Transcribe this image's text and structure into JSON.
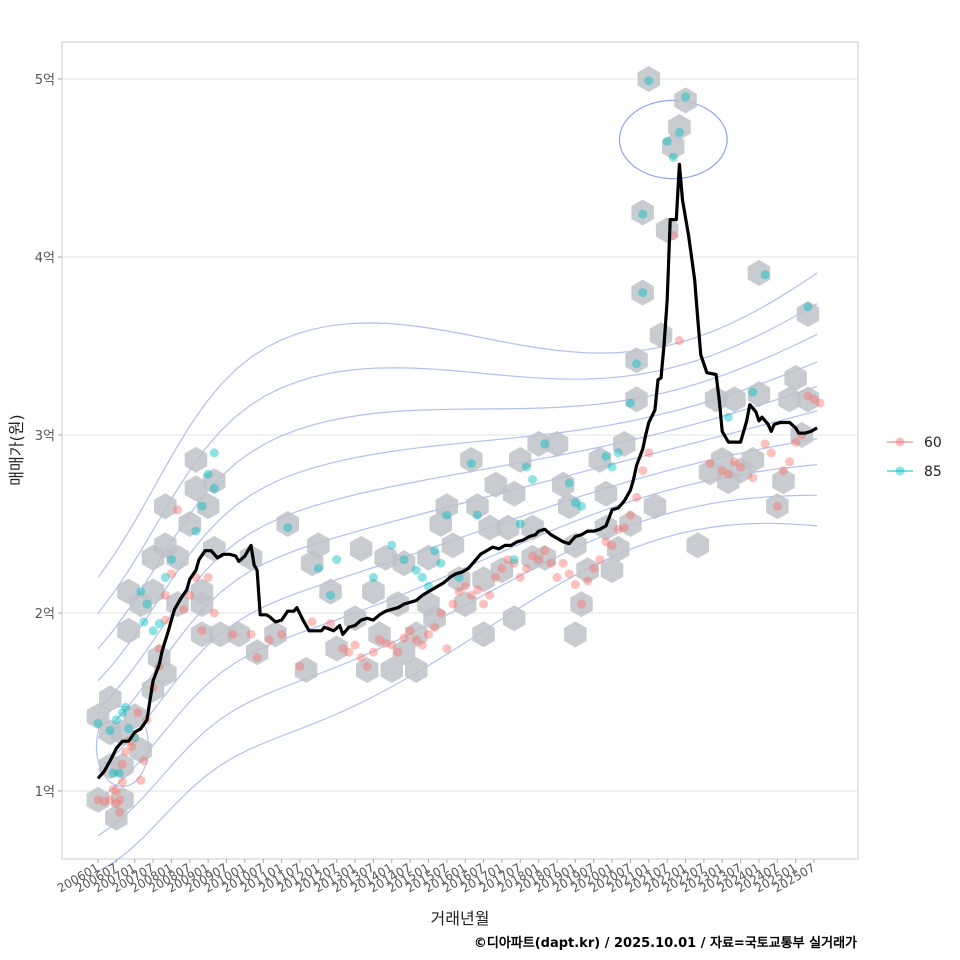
{
  "chart_data": {
    "type": "line",
    "title": "",
    "xlabel": "거래년월",
    "ylabel": "매매가(원)",
    "caption": "©디아파트(dapt.kr) / 2025.10.01 / 자료=국토교통부 실거래가",
    "x_start": "2006-01",
    "x_unit": "month index from 2006-01",
    "xlim_months": [
      -5,
      240
    ],
    "ylim": [
      0.62,
      5.2
    ],
    "y_unit": "억",
    "y_ticks": [
      {
        "value": 1,
        "label": "1억"
      },
      {
        "value": 2,
        "label": "2억"
      },
      {
        "value": 3,
        "label": "3억"
      },
      {
        "value": 4,
        "label": "4억"
      },
      {
        "value": 5,
        "label": "5억"
      }
    ],
    "x_ticks": [
      "200601",
      "200607",
      "200701",
      "200707",
      "200801",
      "200807",
      "200901",
      "200907",
      "201001",
      "201007",
      "201101",
      "201107",
      "201201",
      "201207",
      "201301",
      "201307",
      "201401",
      "201407",
      "201501",
      "201507",
      "201601",
      "201607",
      "201701",
      "201707",
      "201801",
      "201807",
      "201901",
      "201907",
      "202001",
      "202007",
      "202101",
      "202107",
      "202201",
      "202207",
      "202301",
      "202307",
      "202401",
      "202407",
      "202501",
      "202507"
    ],
    "grid": true,
    "legend": {
      "position": "right",
      "title": "",
      "entries": [
        {
          "label": "60",
          "color": "#F8766D"
        },
        {
          "label": "85",
          "color": "#00BFC4"
        }
      ]
    },
    "colors": {
      "line": "#000000",
      "hex": "#BEC2C8",
      "contour": "#8FA6E8",
      "grid": "#E3E3E3",
      "border": "#CCCCCC"
    },
    "moving_average": [
      [
        0,
        1.07
      ],
      [
        2,
        1.11
      ],
      [
        4,
        1.17
      ],
      [
        6,
        1.24
      ],
      [
        8,
        1.28
      ],
      [
        10,
        1.28
      ],
      [
        12,
        1.33
      ],
      [
        14,
        1.35
      ],
      [
        16,
        1.4
      ],
      [
        17,
        1.51
      ],
      [
        18,
        1.62
      ],
      [
        20,
        1.71
      ],
      [
        21,
        1.79
      ],
      [
        23,
        1.9
      ],
      [
        24,
        1.96
      ],
      [
        25,
        2.02
      ],
      [
        27,
        2.08
      ],
      [
        29,
        2.13
      ],
      [
        30,
        2.19
      ],
      [
        32,
        2.24
      ],
      [
        33,
        2.3
      ],
      [
        35,
        2.35
      ],
      [
        37,
        2.35
      ],
      [
        39,
        2.31
      ],
      [
        41,
        2.33
      ],
      [
        43,
        2.33
      ],
      [
        45,
        2.32
      ],
      [
        46,
        2.29
      ],
      [
        48,
        2.32
      ],
      [
        50,
        2.38
      ],
      [
        51,
        2.27
      ],
      [
        52,
        2.24
      ],
      [
        53,
        1.99
      ],
      [
        55,
        1.99
      ],
      [
        56,
        1.98
      ],
      [
        58,
        1.95
      ],
      [
        60,
        1.96
      ],
      [
        62,
        2.01
      ],
      [
        64,
        2.01
      ],
      [
        65,
        2.03
      ],
      [
        67,
        1.96
      ],
      [
        69,
        1.9
      ],
      [
        71,
        1.9
      ],
      [
        73,
        1.9
      ],
      [
        74,
        1.92
      ],
      [
        77,
        1.9
      ],
      [
        79,
        1.93
      ],
      [
        80,
        1.88
      ],
      [
        82,
        1.92
      ],
      [
        84,
        1.93
      ],
      [
        86,
        1.96
      ],
      [
        88,
        1.97
      ],
      [
        90,
        1.96
      ],
      [
        92,
        1.99
      ],
      [
        94,
        2.01
      ],
      [
        96,
        2.02
      ],
      [
        98,
        2.03
      ],
      [
        100,
        2.05
      ],
      [
        102,
        2.06
      ],
      [
        104,
        2.07
      ],
      [
        106,
        2.1
      ],
      [
        108,
        2.12
      ],
      [
        109,
        2.13
      ],
      [
        111,
        2.15
      ],
      [
        113,
        2.17
      ],
      [
        115,
        2.2
      ],
      [
        117,
        2.22
      ],
      [
        119,
        2.23
      ],
      [
        121,
        2.25
      ],
      [
        123,
        2.29
      ],
      [
        125,
        2.33
      ],
      [
        127,
        2.35
      ],
      [
        129,
        2.37
      ],
      [
        131,
        2.36
      ],
      [
        133,
        2.38
      ],
      [
        135,
        2.38
      ],
      [
        137,
        2.4
      ],
      [
        139,
        2.41
      ],
      [
        141,
        2.43
      ],
      [
        143,
        2.44
      ],
      [
        144,
        2.46
      ],
      [
        146,
        2.47
      ],
      [
        148,
        2.44
      ],
      [
        150,
        2.42
      ],
      [
        152,
        2.4
      ],
      [
        154,
        2.39
      ],
      [
        156,
        2.43
      ],
      [
        158,
        2.44
      ],
      [
        160,
        2.46
      ],
      [
        162,
        2.46
      ],
      [
        164,
        2.47
      ],
      [
        166,
        2.49
      ],
      [
        168,
        2.58
      ],
      [
        170,
        2.59
      ],
      [
        172,
        2.63
      ],
      [
        174,
        2.69
      ],
      [
        175,
        2.75
      ],
      [
        176,
        2.83
      ],
      [
        178,
        2.92
      ],
      [
        179,
        3.0
      ],
      [
        180,
        3.07
      ],
      [
        182,
        3.14
      ],
      [
        183,
        3.31
      ],
      [
        184,
        3.32
      ],
      [
        185,
        3.51
      ],
      [
        186,
        3.76
      ],
      [
        187,
        4.21
      ],
      [
        189,
        4.21
      ],
      [
        190,
        4.52
      ],
      [
        191,
        4.32
      ],
      [
        193,
        4.12
      ],
      [
        195,
        3.87
      ],
      [
        196,
        3.65
      ],
      [
        197,
        3.45
      ],
      [
        199,
        3.35
      ],
      [
        202,
        3.34
      ],
      [
        203,
        3.2
      ],
      [
        204,
        3.02
      ],
      [
        206,
        2.96
      ],
      [
        210,
        2.96
      ],
      [
        212,
        3.08
      ],
      [
        213,
        3.17
      ],
      [
        215,
        3.13
      ],
      [
        216,
        3.08
      ],
      [
        217,
        3.1
      ],
      [
        219,
        3.06
      ],
      [
        220,
        3.02
      ],
      [
        221,
        3.06
      ],
      [
        223,
        3.07
      ],
      [
        226,
        3.07
      ],
      [
        228,
        3.04
      ],
      [
        229,
        3.01
      ],
      [
        231,
        3.01
      ],
      [
        233,
        3.02
      ],
      [
        235,
        3.04
      ]
    ],
    "hexbins": [
      [
        0,
        1.42
      ],
      [
        0,
        0.95
      ],
      [
        4,
        1.52
      ],
      [
        4,
        1.33
      ],
      [
        4,
        1.14
      ],
      [
        6,
        0.85
      ],
      [
        8,
        1.33
      ],
      [
        8,
        1.14
      ],
      [
        8,
        0.95
      ],
      [
        10,
        2.12
      ],
      [
        10,
        1.9
      ],
      [
        12,
        1.42
      ],
      [
        14,
        2.05
      ],
      [
        14,
        1.23
      ],
      [
        18,
        2.31
      ],
      [
        18,
        2.12
      ],
      [
        18,
        1.57
      ],
      [
        20,
        1.75
      ],
      [
        22,
        2.38
      ],
      [
        22,
        2.6
      ],
      [
        22,
        1.66
      ],
      [
        26,
        2.05
      ],
      [
        26,
        2.31
      ],
      [
        30,
        2.5
      ],
      [
        32,
        2.7
      ],
      [
        32,
        2.86
      ],
      [
        34,
        2.05
      ],
      [
        34,
        2.12
      ],
      [
        34,
        1.88
      ],
      [
        36,
        2.6
      ],
      [
        38,
        2.74
      ],
      [
        38,
        2.36
      ],
      [
        40,
        1.88
      ],
      [
        46,
        1.88
      ],
      [
        50,
        2.31
      ],
      [
        52,
        1.78
      ],
      [
        58,
        1.88
      ],
      [
        62,
        2.5
      ],
      [
        68,
        1.68
      ],
      [
        70,
        2.28
      ],
      [
        72,
        2.38
      ],
      [
        76,
        2.12
      ],
      [
        78,
        1.8
      ],
      [
        84,
        1.97
      ],
      [
        86,
        2.36
      ],
      [
        88,
        1.68
      ],
      [
        90,
        2.12
      ],
      [
        92,
        1.88
      ],
      [
        94,
        2.31
      ],
      [
        96,
        1.68
      ],
      [
        98,
        2.05
      ],
      [
        100,
        2.28
      ],
      [
        100,
        1.78
      ],
      [
        104,
        1.68
      ],
      [
        104,
        1.88
      ],
      [
        108,
        2.31
      ],
      [
        108,
        2.05
      ],
      [
        110,
        1.97
      ],
      [
        112,
        2.5
      ],
      [
        114,
        2.6
      ],
      [
        116,
        2.38
      ],
      [
        118,
        2.19
      ],
      [
        120,
        2.05
      ],
      [
        122,
        2.86
      ],
      [
        124,
        2.6
      ],
      [
        126,
        2.19
      ],
      [
        126,
        1.88
      ],
      [
        128,
        2.48
      ],
      [
        130,
        2.72
      ],
      [
        132,
        2.24
      ],
      [
        134,
        2.48
      ],
      [
        136,
        2.67
      ],
      [
        136,
        1.97
      ],
      [
        138,
        2.86
      ],
      [
        142,
        2.48
      ],
      [
        142,
        2.31
      ],
      [
        144,
        2.95
      ],
      [
        146,
        2.31
      ],
      [
        150,
        2.95
      ],
      [
        152,
        2.72
      ],
      [
        154,
        2.6
      ],
      [
        156,
        2.38
      ],
      [
        156,
        1.88
      ],
      [
        158,
        2.05
      ],
      [
        160,
        2.24
      ],
      [
        164,
        2.86
      ],
      [
        166,
        2.67
      ],
      [
        166,
        2.48
      ],
      [
        168,
        2.24
      ],
      [
        170,
        2.36
      ],
      [
        172,
        2.95
      ],
      [
        174,
        2.5
      ],
      [
        176,
        3.2
      ],
      [
        176,
        3.42
      ],
      [
        178,
        3.8
      ],
      [
        178,
        4.25
      ],
      [
        180,
        5.0
      ],
      [
        182,
        2.6
      ],
      [
        184,
        3.56
      ],
      [
        186,
        4.15
      ],
      [
        188,
        4.62
      ],
      [
        190,
        4.73
      ],
      [
        192,
        4.88
      ],
      [
        196,
        2.38
      ],
      [
        200,
        2.79
      ],
      [
        202,
        3.2
      ],
      [
        204,
        2.86
      ],
      [
        206,
        2.74
      ],
      [
        208,
        3.2
      ],
      [
        210,
        2.8
      ],
      [
        214,
        2.86
      ],
      [
        216,
        3.91
      ],
      [
        216,
        3.23
      ],
      [
        222,
        2.6
      ],
      [
        224,
        2.74
      ],
      [
        226,
        3.2
      ],
      [
        228,
        3.32
      ],
      [
        230,
        3.0
      ],
      [
        232,
        3.2
      ],
      [
        232,
        3.68
      ]
    ],
    "points_60": [
      [
        0,
        0.95
      ],
      [
        2,
        0.94
      ],
      [
        4,
        0.95
      ],
      [
        5,
        1.01
      ],
      [
        6,
        0.93
      ],
      [
        6,
        1.0
      ],
      [
        7,
        0.88
      ],
      [
        7,
        0.95
      ],
      [
        8,
        1.05
      ],
      [
        8,
        1.15
      ],
      [
        9,
        1.22
      ],
      [
        10,
        1.28
      ],
      [
        11,
        1.25
      ],
      [
        12,
        1.3
      ],
      [
        13,
        1.44
      ],
      [
        14,
        1.06
      ],
      [
        15,
        1.17
      ],
      [
        16,
        1.4
      ],
      [
        18,
        1.58
      ],
      [
        20,
        1.7
      ],
      [
        20,
        1.8
      ],
      [
        22,
        1.96
      ],
      [
        22,
        2.1
      ],
      [
        24,
        2.22
      ],
      [
        26,
        2.58
      ],
      [
        28,
        2.02
      ],
      [
        30,
        2.1
      ],
      [
        32,
        2.2
      ],
      [
        34,
        1.9
      ],
      [
        36,
        2.2
      ],
      [
        38,
        2.0
      ],
      [
        44,
        1.88
      ],
      [
        50,
        1.88
      ],
      [
        52,
        1.75
      ],
      [
        56,
        1.85
      ],
      [
        60,
        1.88
      ],
      [
        66,
        1.7
      ],
      [
        70,
        1.95
      ],
      [
        76,
        1.94
      ],
      [
        80,
        1.8
      ],
      [
        82,
        1.78
      ],
      [
        84,
        1.82
      ],
      [
        86,
        1.75
      ],
      [
        88,
        1.7
      ],
      [
        90,
        1.78
      ],
      [
        92,
        1.85
      ],
      [
        94,
        1.83
      ],
      [
        96,
        1.82
      ],
      [
        98,
        1.78
      ],
      [
        100,
        1.86
      ],
      [
        102,
        1.9
      ],
      [
        104,
        1.85
      ],
      [
        106,
        1.82
      ],
      [
        108,
        1.88
      ],
      [
        110,
        1.92
      ],
      [
        112,
        2.0
      ],
      [
        114,
        1.8
      ],
      [
        116,
        2.05
      ],
      [
        118,
        2.12
      ],
      [
        120,
        2.15
      ],
      [
        122,
        2.1
      ],
      [
        124,
        2.13
      ],
      [
        126,
        2.05
      ],
      [
        128,
        2.1
      ],
      [
        130,
        2.2
      ],
      [
        132,
        2.25
      ],
      [
        134,
        2.3
      ],
      [
        136,
        2.28
      ],
      [
        138,
        2.2
      ],
      [
        140,
        2.25
      ],
      [
        142,
        2.32
      ],
      [
        144,
        2.3
      ],
      [
        146,
        2.35
      ],
      [
        148,
        2.28
      ],
      [
        150,
        2.2
      ],
      [
        152,
        2.28
      ],
      [
        154,
        2.22
      ],
      [
        156,
        2.16
      ],
      [
        158,
        2.05
      ],
      [
        160,
        2.18
      ],
      [
        162,
        2.25
      ],
      [
        164,
        2.3
      ],
      [
        166,
        2.4
      ],
      [
        168,
        2.38
      ],
      [
        170,
        2.47
      ],
      [
        172,
        2.48
      ],
      [
        174,
        2.55
      ],
      [
        176,
        2.65
      ],
      [
        178,
        2.8
      ],
      [
        180,
        2.9
      ],
      [
        188,
        4.12
      ],
      [
        190,
        3.53
      ],
      [
        200,
        2.84
      ],
      [
        204,
        2.8
      ],
      [
        206,
        2.78
      ],
      [
        208,
        2.85
      ],
      [
        210,
        2.82
      ],
      [
        214,
        2.76
      ],
      [
        218,
        2.95
      ],
      [
        220,
        2.9
      ],
      [
        222,
        2.6
      ],
      [
        224,
        2.8
      ],
      [
        226,
        2.85
      ],
      [
        228,
        2.96
      ],
      [
        230,
        3.0
      ],
      [
        232,
        3.22
      ],
      [
        234,
        3.2
      ],
      [
        236,
        3.18
      ]
    ],
    "points_85": [
      [
        0,
        1.38
      ],
      [
        4,
        1.34
      ],
      [
        5,
        1.1
      ],
      [
        6,
        1.4
      ],
      [
        7,
        1.1
      ],
      [
        8,
        1.44
      ],
      [
        9,
        1.47
      ],
      [
        10,
        1.35
      ],
      [
        12,
        1.3
      ],
      [
        14,
        2.12
      ],
      [
        15,
        1.95
      ],
      [
        16,
        2.05
      ],
      [
        18,
        1.9
      ],
      [
        20,
        1.94
      ],
      [
        22,
        2.2
      ],
      [
        24,
        2.3
      ],
      [
        32,
        2.46
      ],
      [
        34,
        2.6
      ],
      [
        36,
        2.78
      ],
      [
        38,
        2.7
      ],
      [
        38,
        2.9
      ],
      [
        62,
        2.48
      ],
      [
        72,
        2.25
      ],
      [
        76,
        2.1
      ],
      [
        78,
        2.3
      ],
      [
        90,
        2.2
      ],
      [
        96,
        2.38
      ],
      [
        100,
        2.3
      ],
      [
        104,
        2.24
      ],
      [
        106,
        2.2
      ],
      [
        108,
        2.15
      ],
      [
        110,
        2.35
      ],
      [
        112,
        2.28
      ],
      [
        114,
        2.55
      ],
      [
        118,
        2.2
      ],
      [
        122,
        2.84
      ],
      [
        124,
        2.55
      ],
      [
        136,
        2.3
      ],
      [
        138,
        2.5
      ],
      [
        140,
        2.82
      ],
      [
        142,
        2.75
      ],
      [
        146,
        2.95
      ],
      [
        154,
        2.73
      ],
      [
        156,
        2.62
      ],
      [
        158,
        2.6
      ],
      [
        166,
        2.88
      ],
      [
        168,
        2.82
      ],
      [
        170,
        2.9
      ],
      [
        174,
        3.18
      ],
      [
        176,
        3.4
      ],
      [
        178,
        3.8
      ],
      [
        178,
        4.24
      ],
      [
        180,
        4.99
      ],
      [
        186,
        4.65
      ],
      [
        188,
        4.56
      ],
      [
        190,
        4.7
      ],
      [
        192,
        4.9
      ],
      [
        206,
        3.1
      ],
      [
        214,
        3.24
      ],
      [
        218,
        3.9
      ],
      [
        232,
        3.72
      ]
    ],
    "contour_ellipse": {
      "center": [
        188,
        4.66
      ],
      "radii": [
        8,
        0.22
      ]
    }
  }
}
